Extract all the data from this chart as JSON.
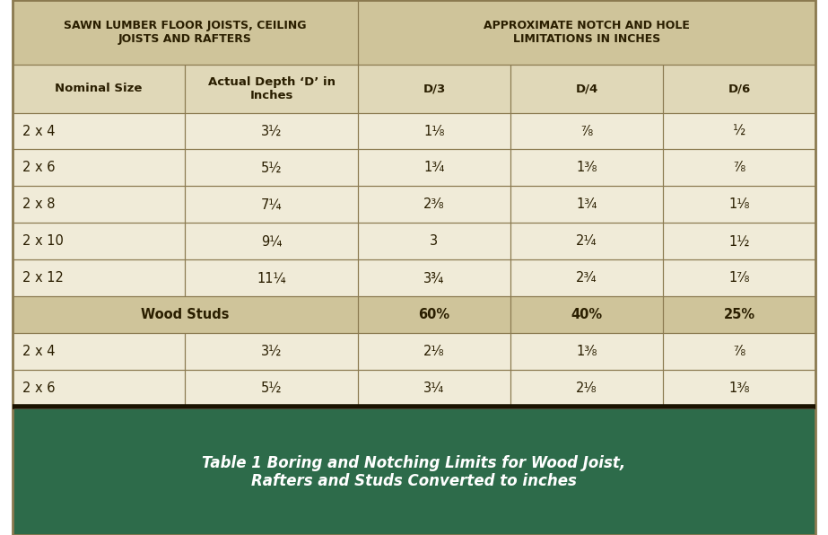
{
  "title_caption": "Table 1 Boring and Notching Limits for Wood Joist,\nRafters and Studs Converted to inches",
  "header1_col1": "SAWN LUMBER FLOOR JOISTS, CEILING\nJOISTS AND RAFTERS",
  "header1_col2": "APPROXIMATE NOTCH AND HOLE\nLIMITATIONS IN INCHES",
  "header2": [
    "Nominal Size",
    "Actual Depth ‘D’ in\nInches",
    "D/3",
    "D/4",
    "D/6"
  ],
  "wood_studs_row": [
    "Wood Studs",
    "",
    "60%",
    "40%",
    "25%"
  ],
  "rows": [
    [
      "2 x 4",
      "3½",
      "1¹⁄₈",
      "⁷⁄₈",
      "½"
    ],
    [
      "2 x 6",
      "5½",
      "1³⁄₄",
      "1³⁄₈",
      "⁷⁄₈"
    ],
    [
      "2 x 8",
      "7¼",
      "2³⁄₈",
      "1³⁄₄",
      "1¹⁄₈"
    ],
    [
      "2 x 10",
      "9¼",
      "3",
      "2¹⁄₄",
      "1½"
    ],
    [
      "2 x 12",
      "11¼",
      "3¾",
      "2³⁄₄",
      "1⁷⁄₈"
    ]
  ],
  "stud_rows": [
    [
      "2 x 4",
      "3½",
      "2¹⁄₈",
      "1³⁄₈",
      "⁷⁄₈"
    ],
    [
      "2 x 6",
      "5½",
      "3¹⁄₄",
      "2¹⁄₈",
      "1³⁄₈"
    ]
  ],
  "bg_header": "#cfc49a",
  "bg_subheader": "#e0d8b8",
  "bg_white": "#f0ebd8",
  "bg_stud": "#cfc49a",
  "bg_footer": "#2d6b4a",
  "border_color": "#8b7a50",
  "border_thick": "#1a1200",
  "text_dark": "#2a1e00",
  "text_white": "#ffffff",
  "fig_bg": "#ffffff"
}
